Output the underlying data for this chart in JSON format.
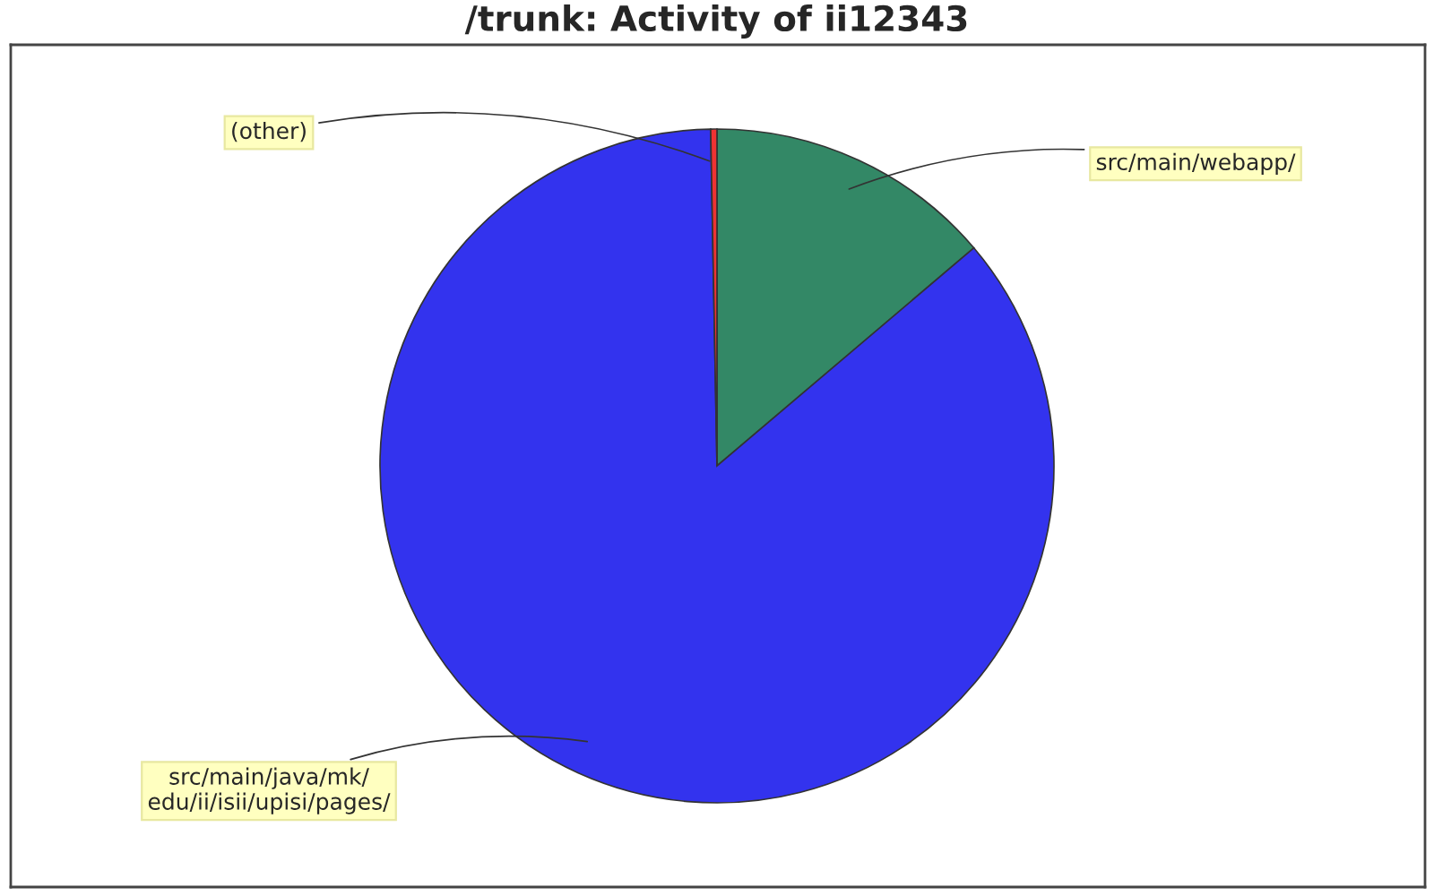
{
  "chart_data": {
    "type": "pie",
    "title": "/trunk: Activity of ii12343",
    "categories": [
      "src/main/webapp/",
      "src/main/java/mk/\nedu/ii/isii/upisi/pages/",
      "(other)"
    ],
    "values": [
      13.8,
      85.9,
      0.3
    ],
    "colors": [
      "#338866",
      "#3333ee",
      "#ee3333"
    ]
  }
}
